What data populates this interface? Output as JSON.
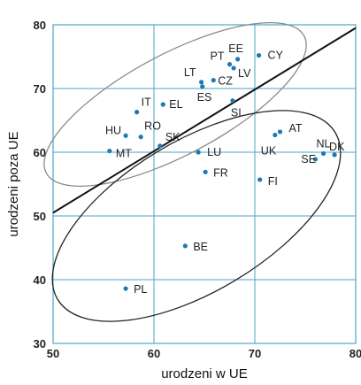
{
  "chart_data": {
    "type": "scatter",
    "title": "",
    "xlabel": "urodzeni w UE",
    "ylabel": "urodzeni poza UE",
    "xlim": [
      50,
      80
    ],
    "ylim": [
      30,
      80
    ],
    "xticks": [
      50,
      60,
      70,
      80
    ],
    "yticks": [
      30,
      40,
      50,
      60,
      70,
      80
    ],
    "grid": true,
    "points": [
      {
        "label": "CY",
        "x": 70.4,
        "y": 75.2
      },
      {
        "label": "EE",
        "x": 68.3,
        "y": 74.6
      },
      {
        "label": "PT",
        "x": 67.5,
        "y": 73.8
      },
      {
        "label": "LV",
        "x": 67.9,
        "y": 73.2
      },
      {
        "label": "LT",
        "x": 64.7,
        "y": 71.0
      },
      {
        "label": "CZ",
        "x": 65.9,
        "y": 71.3
      },
      {
        "label": "ES",
        "x": 64.8,
        "y": 70.3
      },
      {
        "label": "SI",
        "x": 67.8,
        "y": 68.1
      },
      {
        "label": "EL",
        "x": 60.9,
        "y": 67.5
      },
      {
        "label": "IT",
        "x": 58.3,
        "y": 66.3
      },
      {
        "label": "HU",
        "x": 57.2,
        "y": 62.6
      },
      {
        "label": "RO",
        "x": 58.7,
        "y": 62.4
      },
      {
        "label": "SK",
        "x": 60.6,
        "y": 61.0
      },
      {
        "label": "MT",
        "x": 55.6,
        "y": 60.2
      },
      {
        "label": "LU",
        "x": 64.4,
        "y": 60.0
      },
      {
        "label": "FR",
        "x": 65.1,
        "y": 56.9
      },
      {
        "label": "FI",
        "x": 70.5,
        "y": 55.7
      },
      {
        "label": "AT",
        "x": 72.5,
        "y": 63.2
      },
      {
        "label": "UK",
        "x": 72.0,
        "y": 62.7
      },
      {
        "label": "NL",
        "x": 76.8,
        "y": 59.8
      },
      {
        "label": "DK",
        "x": 77.9,
        "y": 59.6
      },
      {
        "label": "SE",
        "x": 76.0,
        "y": 58.9
      },
      {
        "label": "BE",
        "x": 63.1,
        "y": 45.3
      },
      {
        "label": "PL",
        "x": 57.2,
        "y": 38.6
      }
    ],
    "line": {
      "x": [
        50,
        80
      ],
      "y": [
        50.5,
        79.5
      ]
    },
    "ellipses": [
      {
        "group": "upper",
        "color": "#8a8a8a"
      },
      {
        "group": "lower",
        "color": "#222222"
      }
    ],
    "colors": {
      "point": "#1f78b4",
      "grid": "#4aa6c8",
      "frame": "#4aa6c8",
      "line": "#111111"
    }
  }
}
